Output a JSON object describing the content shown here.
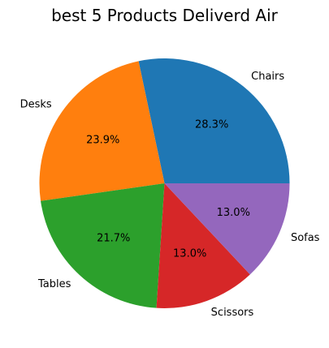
{
  "chart_data": {
    "type": "pie",
    "title": "best 5 Products Deliverd Air",
    "categories": [
      "Chairs",
      "Desks",
      "Tables",
      "Scissors",
      "Sofas"
    ],
    "values": [
      28.3,
      23.9,
      21.7,
      13.0,
      13.0
    ],
    "percent_labels": [
      "28.3%",
      "23.9%",
      "21.7%",
      "13.0%",
      "13.0%"
    ],
    "colors": [
      "#1f77b4",
      "#ff7f0e",
      "#2ca02c",
      "#d62728",
      "#9467bd"
    ],
    "start_angle_deg": 0,
    "direction": "counterclockwise",
    "legend": "none"
  }
}
